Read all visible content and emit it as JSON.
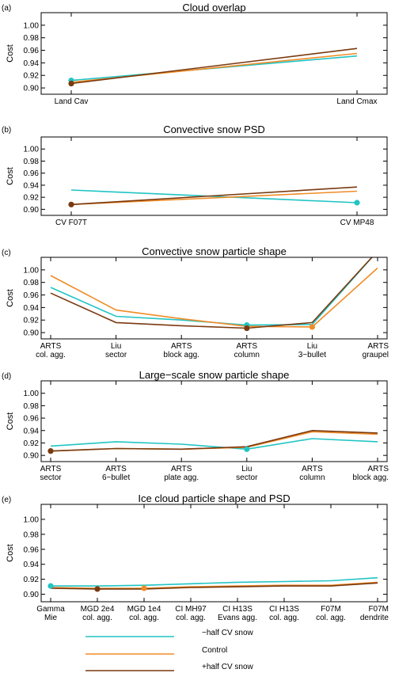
{
  "colors": {
    "minus": "#22c4c4",
    "control": "#f08c28",
    "plus": "#7a3a10"
  },
  "legend": {
    "minus": "−half CV snow",
    "control": "Control",
    "plus": "+half CV snow"
  },
  "chart_data": [
    {
      "type": "line",
      "panel": "(a)",
      "title": "Cloud overlap",
      "ylabel": "Cost",
      "ylim": [
        0.89,
        1.02
      ],
      "yticks": [
        "0.90",
        "0.92",
        "0.94",
        "0.96",
        "0.98",
        "1.00"
      ],
      "categories": [
        [
          "Land Cav"
        ],
        [
          "Land Cmax"
        ]
      ],
      "series": [
        {
          "name": "−half CV snow",
          "key": "minus",
          "values": [
            0.912,
            0.951
          ]
        },
        {
          "name": "Control",
          "key": "control",
          "values": [
            0.909,
            0.955
          ]
        },
        {
          "name": "+half CV snow",
          "key": "plus",
          "values": [
            0.907,
            0.963
          ]
        }
      ],
      "markers": [
        {
          "series": "minus",
          "index": 0
        },
        {
          "series": "plus",
          "index": 0
        }
      ]
    },
    {
      "type": "line",
      "panel": "(b)",
      "title": "Convective snow PSD",
      "ylabel": "Cost",
      "ylim": [
        0.89,
        1.02
      ],
      "yticks": [
        "0.90",
        "0.92",
        "0.94",
        "0.96",
        "0.98",
        "1.00"
      ],
      "categories": [
        [
          "CV F07T"
        ],
        [
          "CV MP48"
        ]
      ],
      "series": [
        {
          "name": "−half CV snow",
          "key": "minus",
          "values": [
            0.932,
            0.911
          ]
        },
        {
          "name": "Control",
          "key": "control",
          "values": [
            0.908,
            0.93
          ]
        },
        {
          "name": "+half CV snow",
          "key": "plus",
          "values": [
            0.908,
            0.937
          ]
        }
      ],
      "markers": [
        {
          "series": "minus",
          "index": 1
        },
        {
          "series": "plus",
          "index": 0
        }
      ]
    },
    {
      "type": "line",
      "panel": "(c)",
      "title": "Convective snow particle shape",
      "ylabel": "Cost",
      "ylim": [
        0.89,
        1.02
      ],
      "yticks": [
        "0.90",
        "0.92",
        "0.94",
        "0.96",
        "0.98",
        "1.00"
      ],
      "categories": [
        [
          "ARTS",
          "col. agg."
        ],
        [
          "Liu",
          "sector"
        ],
        [
          "ARTS",
          "block agg."
        ],
        [
          "ARTS",
          "column"
        ],
        [
          "Liu",
          "3−bullet"
        ],
        [
          "ARTS",
          "graupel"
        ]
      ],
      "series": [
        {
          "name": "−half CV snow",
          "key": "minus",
          "values": [
            0.972,
            0.926,
            0.92,
            0.912,
            0.913,
            1.03
          ]
        },
        {
          "name": "Control",
          "key": "control",
          "values": [
            0.991,
            0.936,
            0.922,
            0.91,
            0.909,
            1.003
          ]
        },
        {
          "name": "+half CV snow",
          "key": "plus",
          "values": [
            0.963,
            0.916,
            0.911,
            0.907,
            0.916,
            1.03
          ]
        }
      ],
      "markers": [
        {
          "series": "minus",
          "index": 3
        },
        {
          "series": "control",
          "index": 4
        },
        {
          "series": "plus",
          "index": 3
        }
      ]
    },
    {
      "type": "line",
      "panel": "(d)",
      "title": "Large−scale snow particle shape",
      "ylabel": "Cost",
      "ylim": [
        0.89,
        1.02
      ],
      "yticks": [
        "0.90",
        "0.92",
        "0.94",
        "0.96",
        "0.98",
        "1.00"
      ],
      "categories": [
        [
          "ARTS",
          "sector"
        ],
        [
          "ARTS",
          "6−bullet"
        ],
        [
          "ARTS",
          "plate agg."
        ],
        [
          "Liu",
          "sector"
        ],
        [
          "ARTS",
          "column"
        ],
        [
          "ARTS",
          "block agg."
        ]
      ],
      "series": [
        {
          "name": "−half CV snow",
          "key": "minus",
          "values": [
            0.915,
            0.922,
            0.918,
            0.91,
            0.927,
            0.922
          ]
        },
        {
          "name": "Control",
          "key": "control",
          "values": [
            0.907,
            0.911,
            0.91,
            0.913,
            0.938,
            0.934
          ]
        },
        {
          "name": "+half CV snow",
          "key": "plus",
          "values": [
            0.907,
            0.911,
            0.91,
            0.914,
            0.94,
            0.936
          ]
        }
      ],
      "markers": [
        {
          "series": "minus",
          "index": 3
        },
        {
          "series": "plus",
          "index": 0
        }
      ]
    },
    {
      "type": "line",
      "panel": "(e)",
      "title": "Ice cloud particle shape and PSD",
      "ylabel": "Cost",
      "ylim": [
        0.89,
        1.02
      ],
      "yticks": [
        "0.90",
        "0.92",
        "0.94",
        "0.96",
        "0.98",
        "1.00"
      ],
      "categories": [
        [
          "Gamma",
          "Mie"
        ],
        [
          "MGD 2e4",
          "col. agg."
        ],
        [
          "MGD 1e4",
          "col. agg."
        ],
        [
          "CI MH97",
          "col. agg."
        ],
        [
          "CI H13S",
          "Evans agg."
        ],
        [
          "CI H13S",
          "col. agg."
        ],
        [
          "F07M",
          "col. agg."
        ],
        [
          "F07M",
          "dendrite"
        ]
      ],
      "series": [
        {
          "name": "−half CV snow",
          "key": "minus",
          "values": [
            0.911,
            0.911,
            0.912,
            0.914,
            0.916,
            0.917,
            0.918,
            0.922
          ]
        },
        {
          "name": "Control",
          "key": "control",
          "values": [
            0.909,
            0.908,
            0.908,
            0.91,
            0.911,
            0.912,
            0.912,
            0.916
          ]
        },
        {
          "name": "+half CV snow",
          "key": "plus",
          "values": [
            0.908,
            0.907,
            0.907,
            0.909,
            0.91,
            0.911,
            0.911,
            0.915
          ]
        }
      ],
      "markers": [
        {
          "series": "minus",
          "index": 0
        },
        {
          "series": "plus",
          "index": 1
        },
        {
          "series": "control",
          "index": 2
        }
      ]
    }
  ]
}
